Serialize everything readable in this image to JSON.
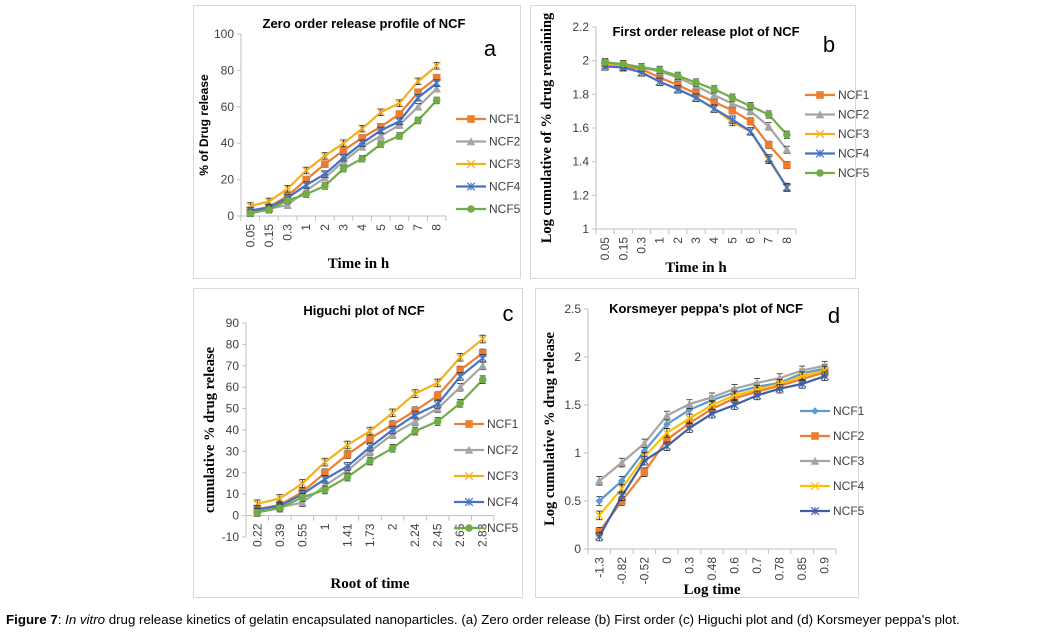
{
  "caption": {
    "label": "Figure 7",
    "sep": ": ",
    "italic": "In vitro",
    "rest": " drug release kinetics of gelatin encapsulated nanoparticles. (a) Zero order release (b) First order (c) Higuchi plot and (d) Korsmeyer peppa's plot."
  },
  "chart_data": [
    {
      "id": "a",
      "type": "line",
      "panel_letter": "a",
      "title": "Zero order release profile of NCF",
      "xlabel": "Time in h",
      "ylabel": "% of Drug release",
      "categories": [
        "0.05",
        "0.15",
        "0.3",
        "1",
        "2",
        "3",
        "4",
        "5",
        "6",
        "7",
        "8"
      ],
      "ylim": [
        0,
        100
      ],
      "yticks": [
        0,
        20,
        40,
        60,
        80,
        100
      ],
      "ytick_labels": [
        "0",
        "20",
        "40",
        "60",
        "80",
        "100"
      ],
      "legend_position": "right",
      "error_bars": true,
      "series": [
        {
          "name": "NCF1",
          "color": "#ED7D31",
          "marker": "square",
          "values": [
            3,
            5,
            11,
            20,
            28.5,
            36,
            43,
            49,
            56,
            68,
            76
          ]
        },
        {
          "name": "NCF2",
          "color": "#A5A5A5",
          "marker": "triangle",
          "values": [
            2,
            4,
            6,
            14,
            21,
            30,
            38,
            44,
            50,
            60,
            70
          ]
        },
        {
          "name": "NCF3",
          "color": "#F2B01E",
          "marker": "x",
          "values": [
            5.5,
            8,
            15,
            25,
            33,
            40,
            48,
            57,
            62,
            74,
            82.5
          ]
        },
        {
          "name": "NCF4",
          "color": "#4472C4",
          "marker": "star",
          "values": [
            3,
            4.5,
            10,
            17,
            23,
            32,
            40,
            47,
            52,
            65,
            73
          ]
        },
        {
          "name": "NCF5",
          "color": "#70AD47",
          "marker": "circle",
          "values": [
            1.5,
            3.5,
            8.5,
            12,
            16.5,
            26,
            31.5,
            39.5,
            44,
            52.5,
            63.5
          ]
        }
      ]
    },
    {
      "id": "b",
      "type": "line",
      "panel_letter": "b",
      "title": "First order release plot of NCF",
      "xlabel": "Time in h",
      "ylabel": "Log cumulative of % drug remaining",
      "categories": [
        "0.05",
        "0.15",
        "0.3",
        "1",
        "2",
        "3",
        "4",
        "5",
        "6",
        "7",
        "8"
      ],
      "ylim": [
        1,
        2.2
      ],
      "yticks": [
        1,
        1.2,
        1.4,
        1.6,
        1.8,
        2,
        2.2
      ],
      "ytick_labels": [
        "1",
        "1.2",
        "1.4",
        "1.6",
        "1.8",
        "2",
        "2.2"
      ],
      "legend_position": "right",
      "error_bars": true,
      "series": [
        {
          "name": "NCF1",
          "color": "#ED7D31",
          "marker": "square",
          "values": [
            1.985,
            1.97,
            1.95,
            1.9,
            1.855,
            1.805,
            1.755,
            1.705,
            1.64,
            1.5,
            1.38
          ]
        },
        {
          "name": "NCF2",
          "color": "#A5A5A5",
          "marker": "triangle",
          "values": [
            1.99,
            1.98,
            1.96,
            1.935,
            1.9,
            1.85,
            1.795,
            1.745,
            1.7,
            1.61,
            1.47
          ]
        },
        {
          "name": "NCF3",
          "color": "#F2B01E",
          "marker": "x",
          "values": [
            1.975,
            1.965,
            1.93,
            1.875,
            1.83,
            1.78,
            1.715,
            1.635,
            1.58,
            1.41,
            1.25
          ]
        },
        {
          "name": "NCF4",
          "color": "#4472C4",
          "marker": "star",
          "values": [
            1.965,
            1.96,
            1.93,
            1.875,
            1.83,
            1.78,
            1.715,
            1.65,
            1.58,
            1.42,
            1.245
          ]
        },
        {
          "name": "NCF5",
          "color": "#70AD47",
          "marker": "circle",
          "values": [
            1.99,
            1.98,
            1.96,
            1.945,
            1.91,
            1.87,
            1.83,
            1.78,
            1.73,
            1.68,
            1.56
          ]
        }
      ]
    },
    {
      "id": "c",
      "type": "line",
      "panel_letter": "c",
      "title": "Higuchi plot of NCF",
      "xlabel": "Root of time",
      "ylabel": "cumulative % drug release",
      "categories": [
        "0.22",
        "0.39",
        "0.55",
        "1",
        "1.41",
        "1.73",
        "2",
        "2.24",
        "2.45",
        "2.65",
        "2.83"
      ],
      "ylim": [
        -10,
        90
      ],
      "yticks": [
        -10,
        0,
        10,
        20,
        30,
        40,
        50,
        60,
        70,
        80,
        90
      ],
      "ytick_labels": [
        "-10",
        "0",
        "10",
        "20",
        "30",
        "40",
        "50",
        "60",
        "70",
        "80",
        "90"
      ],
      "legend_position": "right",
      "error_bars": true,
      "series": [
        {
          "name": "NCF1",
          "color": "#ED7D31",
          "marker": "square",
          "values": [
            3,
            5,
            11,
            20,
            28.5,
            36,
            42.5,
            49,
            56,
            68,
            76
          ]
        },
        {
          "name": "NCF2",
          "color": "#A5A5A5",
          "marker": "triangle",
          "values": [
            2,
            4,
            6,
            14,
            21,
            30,
            38,
            44,
            50,
            60,
            70
          ]
        },
        {
          "name": "NCF3",
          "color": "#F2B01E",
          "marker": "x",
          "values": [
            5.5,
            8,
            15,
            25,
            33,
            39.5,
            48,
            57,
            62,
            74,
            82.5
          ]
        },
        {
          "name": "NCF4",
          "color": "#4472C4",
          "marker": "star",
          "values": [
            3,
            4.5,
            10,
            17,
            23,
            32,
            40,
            47,
            52,
            65,
            73.5
          ]
        },
        {
          "name": "NCF5",
          "color": "#70AD47",
          "marker": "circle",
          "values": [
            1.5,
            3.5,
            8.5,
            12,
            18,
            25.5,
            31.5,
            39.5,
            44,
            52.5,
            63.5
          ]
        }
      ]
    },
    {
      "id": "d",
      "type": "line",
      "panel_letter": "d",
      "title": "Korsmeyer peppa's plot of NCF",
      "xlabel": "Log time",
      "ylabel": "Log cumulative % drug release",
      "categories": [
        "-1.3",
        "-0.82",
        "-0.52",
        "0",
        "0.3",
        "0.48",
        "0.6",
        "0.7",
        "0.78",
        "0.85",
        "0.9"
      ],
      "ylim": [
        0,
        2.5
      ],
      "yticks": [
        0,
        0.5,
        1,
        1.5,
        2,
        2.5
      ],
      "ytick_labels": [
        "0",
        "0.5",
        "1",
        "1.5",
        "2",
        "2.5"
      ],
      "legend_position": "right",
      "error_bars": true,
      "series": [
        {
          "name": "NCF1",
          "color": "#5B9BD5",
          "marker": "diamond",
          "values": [
            0.5,
            0.71,
            1.02,
            1.3,
            1.45,
            1.55,
            1.63,
            1.69,
            1.73,
            1.83,
            1.88
          ]
        },
        {
          "name": "NCF2",
          "color": "#ED7D31",
          "marker": "square",
          "values": [
            0.18,
            0.5,
            0.8,
            1.14,
            1.31,
            1.46,
            1.57,
            1.64,
            1.7,
            1.77,
            1.84
          ]
        },
        {
          "name": "NCF3",
          "color": "#A5A5A5",
          "marker": "triangle",
          "values": [
            0.71,
            0.9,
            1.1,
            1.39,
            1.51,
            1.58,
            1.67,
            1.73,
            1.78,
            1.86,
            1.91
          ]
        },
        {
          "name": "NCF4",
          "color": "#FFC000",
          "marker": "x",
          "values": [
            0.35,
            0.63,
            0.96,
            1.21,
            1.36,
            1.5,
            1.6,
            1.66,
            1.72,
            1.8,
            1.86
          ]
        },
        {
          "name": "NCF5",
          "color": "#3F5FA8",
          "marker": "star",
          "values": [
            0.13,
            0.55,
            0.92,
            1.07,
            1.26,
            1.41,
            1.5,
            1.6,
            1.67,
            1.72,
            1.8
          ]
        }
      ]
    }
  ]
}
